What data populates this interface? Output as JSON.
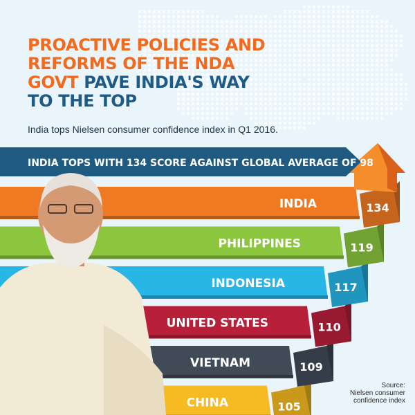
{
  "headline": {
    "orange_part": "PROACTIVE POLICIES AND REFORMS OF THE NDA GOVT",
    "blue_part": "PAVE INDIA'S WAY TO THE TOP"
  },
  "subtitle": "India tops Nielsen consumer confidence index in Q1 2016.",
  "source_lines": [
    "Source:",
    "Nielsen consumer",
    "confidence index"
  ],
  "chart_data": {
    "type": "bar",
    "title": "INDIA TOPS WITH 134 SCORE AGAINST GLOBAL AVERAGE OF 98",
    "categories": [
      "INDIA",
      "PHILIPPINES",
      "INDONESIA",
      "UNITED STATES",
      "VIETNAM",
      "CHINA"
    ],
    "values": [
      134,
      119,
      117,
      110,
      109,
      105
    ],
    "colors": [
      "#f07a22",
      "#8cc63f",
      "#27b6e6",
      "#b8203a",
      "#414b58",
      "#f6bb22"
    ],
    "orientation": "horizontal",
    "global_average": 98
  },
  "colors": {
    "banner": "#1f5a80",
    "accent_orange": "#f26a1e",
    "heading_blue": "#1e5b86"
  }
}
